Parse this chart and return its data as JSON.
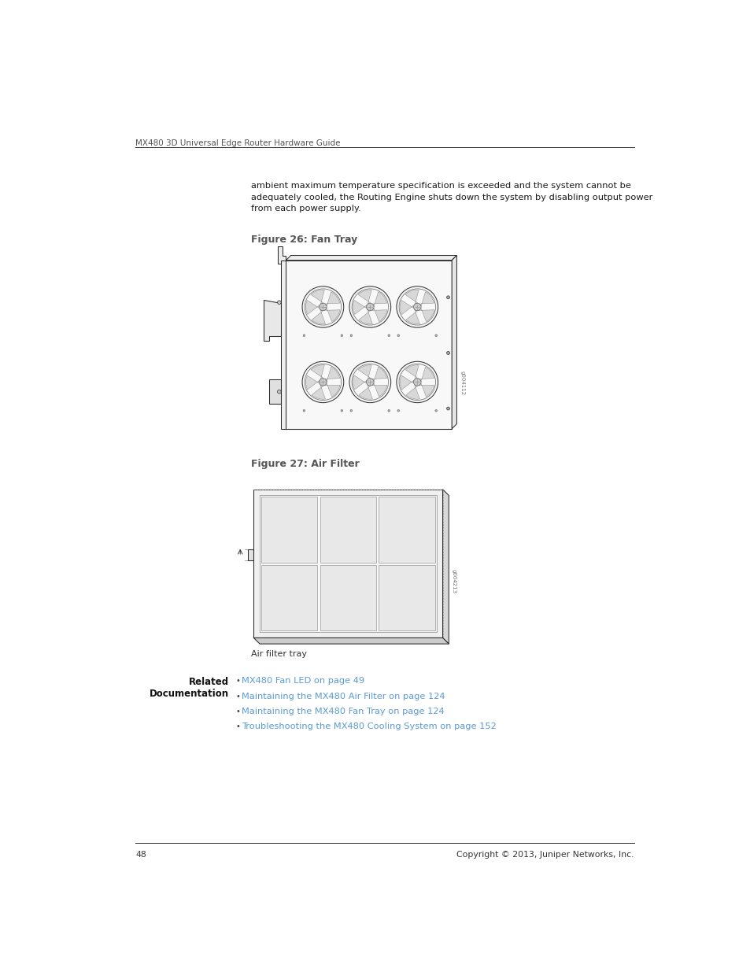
{
  "header_text": "MX480 3D Universal Edge Router Hardware Guide",
  "body_text": "ambient maximum temperature specification is exceeded and the system cannot be\nadequately cooled, the Routing Engine shuts down the system by disabling output power\nfrom each power supply.",
  "fig26_label": "Figure 26: Fan Tray",
  "fig27_label": "Figure 27: Air Filter",
  "fig26_watermark": "g004112",
  "fig27_watermark": "g004213",
  "air_filter_caption": "Air filter tray",
  "links": [
    "MX480 Fan LED on page 49",
    "Maintaining the MX480 Air Filter on page 124",
    "Maintaining the MX480 Fan Tray on page 124",
    "Troubleshooting the MX480 Cooling System on page 152"
  ],
  "footer_page": "48",
  "footer_copyright": "Copyright © 2013, Juniper Networks, Inc.",
  "bg_color": "#ffffff",
  "text_color": "#1a1a1a",
  "link_color": "#5b9bd5",
  "fig_label_color": "#555555",
  "line_color": "#333333",
  "light_fill": "#f5f5f5",
  "mid_fill": "#e0e0e0",
  "dark_fill": "#c8c8c8"
}
